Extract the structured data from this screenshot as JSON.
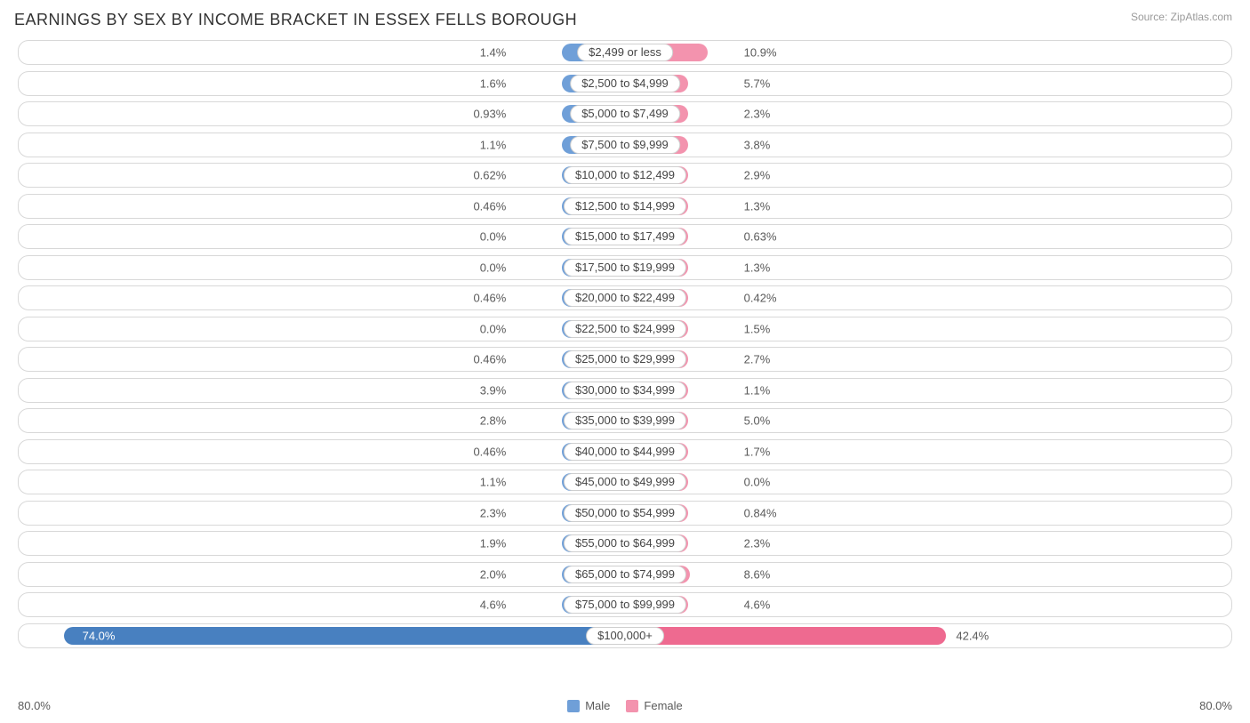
{
  "title": "EARNINGS BY SEX BY INCOME BRACKET IN ESSEX FELLS BOROUGH",
  "source": "Source: ZipAtlas.com",
  "axis": {
    "max": 80.0,
    "left_label": "80.0%",
    "right_label": "80.0%"
  },
  "colors": {
    "male": "#6f9fd8",
    "male_last": "#4880c0",
    "female": "#f393ae",
    "female_last": "#ee6a90",
    "row_border": "#d8d8d8",
    "label_border": "#cfcfcf",
    "text": "#5a5a5a",
    "title_text": "#333333",
    "source_text": "#9a9a9a",
    "background": "#ffffff"
  },
  "legend": {
    "male": "Male",
    "female": "Female"
  },
  "center_label_half_pct": 9.0,
  "min_bar_pct": 5.2,
  "rows": [
    {
      "label": "$2,499 or less",
      "male": 1.4,
      "male_txt": "1.4%",
      "female": 10.9,
      "female_txt": "10.9%"
    },
    {
      "label": "$2,500 to $4,999",
      "male": 1.6,
      "male_txt": "1.6%",
      "female": 5.7,
      "female_txt": "5.7%"
    },
    {
      "label": "$5,000 to $7,499",
      "male": 0.93,
      "male_txt": "0.93%",
      "female": 2.3,
      "female_txt": "2.3%"
    },
    {
      "label": "$7,500 to $9,999",
      "male": 1.1,
      "male_txt": "1.1%",
      "female": 3.8,
      "female_txt": "3.8%"
    },
    {
      "label": "$10,000 to $12,499",
      "male": 0.62,
      "male_txt": "0.62%",
      "female": 2.9,
      "female_txt": "2.9%"
    },
    {
      "label": "$12,500 to $14,999",
      "male": 0.46,
      "male_txt": "0.46%",
      "female": 1.3,
      "female_txt": "1.3%"
    },
    {
      "label": "$15,000 to $17,499",
      "male": 0.0,
      "male_txt": "0.0%",
      "female": 0.63,
      "female_txt": "0.63%"
    },
    {
      "label": "$17,500 to $19,999",
      "male": 0.0,
      "male_txt": "0.0%",
      "female": 1.3,
      "female_txt": "1.3%"
    },
    {
      "label": "$20,000 to $22,499",
      "male": 0.46,
      "male_txt": "0.46%",
      "female": 0.42,
      "female_txt": "0.42%"
    },
    {
      "label": "$22,500 to $24,999",
      "male": 0.0,
      "male_txt": "0.0%",
      "female": 1.5,
      "female_txt": "1.5%"
    },
    {
      "label": "$25,000 to $29,999",
      "male": 0.46,
      "male_txt": "0.46%",
      "female": 2.7,
      "female_txt": "2.7%"
    },
    {
      "label": "$30,000 to $34,999",
      "male": 3.9,
      "male_txt": "3.9%",
      "female": 1.1,
      "female_txt": "1.1%"
    },
    {
      "label": "$35,000 to $39,999",
      "male": 2.8,
      "male_txt": "2.8%",
      "female": 5.0,
      "female_txt": "5.0%"
    },
    {
      "label": "$40,000 to $44,999",
      "male": 0.46,
      "male_txt": "0.46%",
      "female": 1.7,
      "female_txt": "1.7%"
    },
    {
      "label": "$45,000 to $49,999",
      "male": 1.1,
      "male_txt": "1.1%",
      "female": 0.0,
      "female_txt": "0.0%"
    },
    {
      "label": "$50,000 to $54,999",
      "male": 2.3,
      "male_txt": "2.3%",
      "female": 0.84,
      "female_txt": "0.84%"
    },
    {
      "label": "$55,000 to $64,999",
      "male": 1.9,
      "male_txt": "1.9%",
      "female": 2.3,
      "female_txt": "2.3%"
    },
    {
      "label": "$65,000 to $74,999",
      "male": 2.0,
      "male_txt": "2.0%",
      "female": 8.6,
      "female_txt": "8.6%"
    },
    {
      "label": "$75,000 to $99,999",
      "male": 4.6,
      "male_txt": "4.6%",
      "female": 4.6,
      "female_txt": "4.6%"
    },
    {
      "label": "$100,000+",
      "male": 74.0,
      "male_txt": "74.0%",
      "female": 42.4,
      "female_txt": "42.4%"
    }
  ]
}
